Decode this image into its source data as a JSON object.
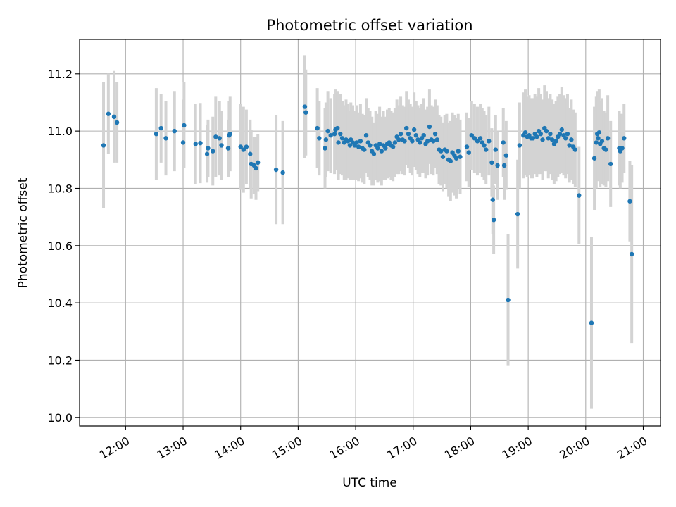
{
  "chart_data": {
    "type": "scatter",
    "title": "Photometric offset variation",
    "xlabel": "UTC time",
    "ylabel": "Photometric offset",
    "xlim": [
      "11:12",
      "21:18"
    ],
    "ylim": [
      9.97,
      11.32
    ],
    "grid": true,
    "x_ticks": [
      "12:00",
      "13:00",
      "14:00",
      "15:00",
      "16:00",
      "17:00",
      "18:00",
      "19:00",
      "20:00",
      "21:00"
    ],
    "y_ticks": [
      "10.0",
      "10.2",
      "10.4",
      "10.6",
      "10.8",
      "11.0",
      "11.2"
    ],
    "colors": {
      "point": "#1f77b4",
      "errorbar": "#d3d3d3",
      "grid": "#b0b0b0"
    },
    "series": [
      {
        "points": [
          [
            "11:37",
            10.95,
            0.22
          ],
          [
            "11:42",
            11.06,
            0.14
          ],
          [
            "11:48",
            11.05,
            0.16
          ],
          [
            "11:51",
            11.03,
            0.14
          ],
          [
            "12:32",
            10.99,
            0.16
          ],
          [
            "12:37",
            11.01,
            0.12
          ],
          [
            "12:42",
            10.975,
            0.13
          ],
          [
            "12:51",
            11.0,
            0.14
          ],
          [
            "13:00",
            10.96,
            0.15
          ],
          [
            "13:01",
            11.02,
            0.15
          ],
          [
            "13:13",
            10.955,
            0.14
          ],
          [
            "13:18",
            10.958,
            0.14
          ],
          [
            "13:25",
            10.92,
            0.1
          ],
          [
            "13:26",
            10.94,
            0.1
          ],
          [
            "13:31",
            10.93,
            0.12
          ],
          [
            "13:34",
            10.98,
            0.14
          ],
          [
            "13:38",
            10.975,
            0.13
          ],
          [
            "13:40",
            10.95,
            0.12
          ],
          [
            "13:47",
            10.94,
            0.1
          ],
          [
            "13:48",
            10.985,
            0.12
          ],
          [
            "13:49",
            10.99,
            0.13
          ],
          [
            "14:00",
            10.945,
            0.15
          ],
          [
            "14:03",
            10.935,
            0.15
          ],
          [
            "14:06",
            10.945,
            0.13
          ],
          [
            "14:10",
            10.92,
            0.12
          ],
          [
            "14:11",
            10.885,
            0.12
          ],
          [
            "14:14",
            10.88,
            0.1
          ],
          [
            "14:16",
            10.87,
            0.11
          ],
          [
            "14:18",
            10.89,
            0.1
          ],
          [
            "14:37",
            10.865,
            0.19
          ],
          [
            "14:44",
            10.855,
            0.18
          ],
          [
            "15:07",
            11.085,
            0.18
          ],
          [
            "15:08",
            11.065,
            0.15
          ],
          [
            "15:20",
            11.01,
            0.14
          ],
          [
            "15:22",
            10.975,
            0.13
          ],
          [
            "15:28",
            10.94,
            0.14
          ],
          [
            "15:29",
            10.97,
            0.13
          ],
          [
            "15:31",
            11.0,
            0.14
          ],
          [
            "15:34",
            10.985,
            0.13
          ],
          [
            "15:38",
            10.99,
            0.14
          ],
          [
            "15:39",
            11.005,
            0.14
          ],
          [
            "15:41",
            11.01,
            0.13
          ],
          [
            "15:42",
            10.96,
            0.13
          ],
          [
            "15:44",
            10.99,
            0.14
          ],
          [
            "15:46",
            10.975,
            0.13
          ],
          [
            "15:48",
            10.96,
            0.13
          ],
          [
            "15:50",
            10.97,
            0.14
          ],
          [
            "15:52",
            10.965,
            0.13
          ],
          [
            "15:54",
            10.95,
            0.12
          ],
          [
            "15:55",
            10.97,
            0.13
          ],
          [
            "15:57",
            10.96,
            0.13
          ],
          [
            "15:59",
            10.95,
            0.12
          ],
          [
            "16:01",
            10.96,
            0.13
          ],
          [
            "16:03",
            10.945,
            0.12
          ],
          [
            "16:05",
            10.965,
            0.13
          ],
          [
            "16:07",
            10.94,
            0.12
          ],
          [
            "16:09",
            10.935,
            0.12
          ],
          [
            "16:11",
            10.985,
            0.13
          ],
          [
            "16:13",
            10.96,
            0.12
          ],
          [
            "16:15",
            10.95,
            0.12
          ],
          [
            "16:17",
            10.93,
            0.12
          ],
          [
            "16:19",
            10.92,
            0.11
          ],
          [
            "16:21",
            10.95,
            0.12
          ],
          [
            "16:23",
            10.94,
            0.12
          ],
          [
            "16:25",
            10.955,
            0.13
          ],
          [
            "16:27",
            10.93,
            0.12
          ],
          [
            "16:29",
            10.95,
            0.12
          ],
          [
            "16:31",
            10.94,
            0.11
          ],
          [
            "16:33",
            10.955,
            0.12
          ],
          [
            "16:35",
            10.96,
            0.12
          ],
          [
            "16:37",
            10.95,
            0.12
          ],
          [
            "16:39",
            10.945,
            0.12
          ],
          [
            "16:41",
            10.96,
            0.12
          ],
          [
            "16:43",
            10.98,
            0.13
          ],
          [
            "16:45",
            10.97,
            0.12
          ],
          [
            "16:47",
            10.99,
            0.13
          ],
          [
            "16:49",
            10.97,
            0.12
          ],
          [
            "16:51",
            10.965,
            0.12
          ],
          [
            "16:53",
            11.01,
            0.13
          ],
          [
            "16:55",
            10.99,
            0.12
          ],
          [
            "16:57",
            10.975,
            0.12
          ],
          [
            "16:59",
            10.965,
            0.12
          ],
          [
            "17:01",
            11.005,
            0.13
          ],
          [
            "17:03",
            10.985,
            0.12
          ],
          [
            "17:05",
            10.97,
            0.12
          ],
          [
            "17:07",
            10.96,
            0.12
          ],
          [
            "17:09",
            10.975,
            0.12
          ],
          [
            "17:11",
            10.985,
            0.13
          ],
          [
            "17:13",
            10.955,
            0.12
          ],
          [
            "17:15",
            10.965,
            0.12
          ],
          [
            "17:17",
            11.015,
            0.13
          ],
          [
            "17:19",
            10.97,
            0.12
          ],
          [
            "17:21",
            10.965,
            0.12
          ],
          [
            "17:23",
            10.99,
            0.12
          ],
          [
            "17:25",
            10.97,
            0.12
          ],
          [
            "17:27",
            10.935,
            0.12
          ],
          [
            "17:29",
            10.93,
            0.12
          ],
          [
            "17:31",
            10.91,
            0.12
          ],
          [
            "17:33",
            10.935,
            0.12
          ],
          [
            "17:35",
            10.93,
            0.13
          ],
          [
            "17:37",
            10.9,
            0.13
          ],
          [
            "17:39",
            10.895,
            0.14
          ],
          [
            "17:41",
            10.925,
            0.14
          ],
          [
            "17:43",
            10.915,
            0.14
          ],
          [
            "17:45",
            10.905,
            0.14
          ],
          [
            "17:47",
            10.93,
            0.13
          ],
          [
            "17:49",
            10.91,
            0.13
          ],
          [
            "17:56",
            10.945,
            0.12
          ],
          [
            "17:58",
            10.925,
            0.12
          ],
          [
            "18:01",
            10.985,
            0.12
          ],
          [
            "18:04",
            10.975,
            0.12
          ],
          [
            "18:07",
            10.965,
            0.12
          ],
          [
            "18:10",
            10.975,
            0.12
          ],
          [
            "18:12",
            10.96,
            0.12
          ],
          [
            "18:14",
            10.95,
            0.12
          ],
          [
            "18:16",
            10.935,
            0.12
          ],
          [
            "18:19",
            10.965,
            0.12
          ],
          [
            "18:22",
            10.89,
            0.12
          ],
          [
            "18:23",
            10.76,
            0.12
          ],
          [
            "18:24",
            10.69,
            0.12
          ],
          [
            "18:26",
            10.935,
            0.12
          ],
          [
            "18:28",
            10.88,
            0.12
          ],
          [
            "18:34",
            10.96,
            0.12
          ],
          [
            "18:35",
            10.88,
            0.12
          ],
          [
            "18:37",
            10.915,
            0.12
          ],
          [
            "18:39",
            10.41,
            0.23
          ],
          [
            "18:49",
            10.71,
            0.19
          ],
          [
            "18:51",
            10.95,
            0.15
          ],
          [
            "18:55",
            10.985,
            0.15
          ],
          [
            "18:57",
            10.995,
            0.15
          ],
          [
            "18:59",
            10.98,
            0.14
          ],
          [
            "19:01",
            10.985,
            0.14
          ],
          [
            "19:03",
            10.975,
            0.14
          ],
          [
            "19:05",
            10.975,
            0.14
          ],
          [
            "19:07",
            10.99,
            0.14
          ],
          [
            "19:09",
            10.98,
            0.14
          ],
          [
            "19:11",
            11.0,
            0.15
          ],
          [
            "19:13",
            10.99,
            0.14
          ],
          [
            "19:15",
            10.97,
            0.14
          ],
          [
            "19:17",
            11.01,
            0.15
          ],
          [
            "19:19",
            11.0,
            0.14
          ],
          [
            "19:21",
            10.975,
            0.14
          ],
          [
            "19:23",
            10.99,
            0.14
          ],
          [
            "19:25",
            10.97,
            0.14
          ],
          [
            "19:27",
            10.955,
            0.14
          ],
          [
            "19:29",
            10.965,
            0.14
          ],
          [
            "19:31",
            10.98,
            0.14
          ],
          [
            "19:33",
            10.99,
            0.14
          ],
          [
            "19:35",
            11.005,
            0.15
          ],
          [
            "19:37",
            10.985,
            0.14
          ],
          [
            "19:39",
            10.975,
            0.14
          ],
          [
            "19:41",
            10.99,
            0.14
          ],
          [
            "19:43",
            10.95,
            0.13
          ],
          [
            "19:45",
            10.97,
            0.14
          ],
          [
            "19:47",
            10.945,
            0.13
          ],
          [
            "19:49",
            10.935,
            0.13
          ],
          [
            "19:53",
            10.775,
            0.17
          ],
          [
            "20:06",
            10.33,
            0.3
          ],
          [
            "20:09",
            10.905,
            0.18
          ],
          [
            "20:11",
            10.96,
            0.16
          ],
          [
            "20:12",
            10.99,
            0.15
          ],
          [
            "20:13",
            10.975,
            0.15
          ],
          [
            "20:14",
            10.995,
            0.15
          ],
          [
            "20:15",
            10.955,
            0.15
          ],
          [
            "20:17",
            10.965,
            0.15
          ],
          [
            "20:19",
            10.94,
            0.13
          ],
          [
            "20:21",
            10.935,
            0.13
          ],
          [
            "20:23",
            10.975,
            0.15
          ],
          [
            "20:26",
            10.885,
            0.15
          ],
          [
            "20:35",
            10.94,
            0.13
          ],
          [
            "20:36",
            10.93,
            0.13
          ],
          [
            "20:38",
            10.94,
            0.12
          ],
          [
            "20:40",
            10.975,
            0.12
          ],
          [
            "20:46",
            10.755,
            0.14
          ],
          [
            "20:48",
            10.57,
            0.31
          ]
        ]
      }
    ]
  }
}
